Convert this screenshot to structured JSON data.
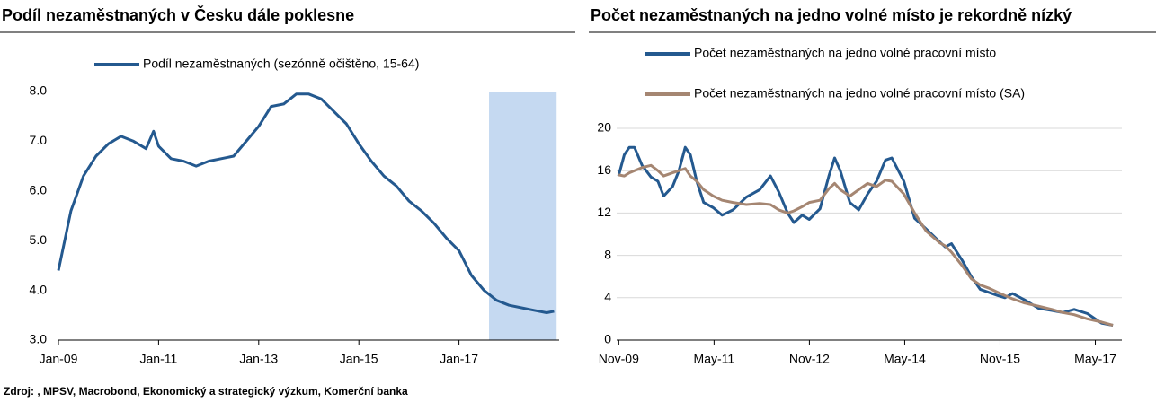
{
  "source": "Zdroj: , MPSV, Macrobond, Ekonomický a strategický výzkum, Komerční banka",
  "chart_data": [
    {
      "type": "line",
      "title": "Podíl nezaměstnaných v Česku dále poklesne",
      "x": [
        2009.0,
        2009.25,
        2009.5,
        2009.75,
        2010.0,
        2010.25,
        2010.5,
        2010.75,
        2010.9,
        2011.0,
        2011.25,
        2011.5,
        2011.75,
        2012.0,
        2012.25,
        2012.5,
        2012.75,
        2013.0,
        2013.25,
        2013.5,
        2013.75,
        2014.0,
        2014.25,
        2014.5,
        2014.75,
        2015.0,
        2015.25,
        2015.5,
        2015.75,
        2016.0,
        2016.25,
        2016.5,
        2016.75,
        2017.0,
        2017.25,
        2017.5,
        2017.75,
        2018.0,
        2018.25,
        2018.5,
        2018.75,
        2018.9
      ],
      "series": [
        {
          "name": "Podíl nezaměstnaných (sezónně očištěno, 15-64)",
          "color": "#24598f",
          "values": [
            4.4,
            5.6,
            6.3,
            6.7,
            6.95,
            7.1,
            7.0,
            6.85,
            7.2,
            6.9,
            6.65,
            6.6,
            6.5,
            6.6,
            6.65,
            6.7,
            7.0,
            7.3,
            7.7,
            7.75,
            7.95,
            7.95,
            7.85,
            7.6,
            7.35,
            6.95,
            6.6,
            6.3,
            6.1,
            5.8,
            5.6,
            5.35,
            5.05,
            4.8,
            4.3,
            4.0,
            3.8,
            3.7,
            3.65,
            3.6,
            3.55,
            3.58
          ]
        }
      ],
      "xlim": [
        2009,
        2019
      ],
      "xticks": [
        {
          "value": 2009,
          "label": "Jan-09"
        },
        {
          "value": 2011,
          "label": "Jan-11"
        },
        {
          "value": 2013,
          "label": "Jan-13"
        },
        {
          "value": 2015,
          "label": "Jan-15"
        },
        {
          "value": 2017,
          "label": "Jan-17"
        }
      ],
      "ylim": [
        3,
        8
      ],
      "yticks": [
        {
          "value": 3,
          "label": "3.0"
        },
        {
          "value": 4,
          "label": "4.0"
        },
        {
          "value": 5,
          "label": "5.0"
        },
        {
          "value": 6,
          "label": "6.0"
        },
        {
          "value": 7,
          "label": "7.0"
        },
        {
          "value": 8,
          "label": "8.0"
        }
      ],
      "grid": false,
      "legend": "top",
      "highlight": {
        "x": [
          2017.6,
          2018.95
        ],
        "color": "#c5d9f1"
      }
    },
    {
      "type": "line",
      "title": "Počet nezaměstnaných na jedno volné místo je rekordně nízký",
      "x": [
        2009.83,
        2009.92,
        2010.0,
        2010.08,
        2010.2,
        2010.34,
        2010.45,
        2010.54,
        2010.68,
        2010.78,
        2010.88,
        2010.96,
        2011.06,
        2011.17,
        2011.32,
        2011.46,
        2011.63,
        2011.84,
        2012.05,
        2012.22,
        2012.35,
        2012.49,
        2012.59,
        2012.72,
        2012.83,
        2013.0,
        2013.14,
        2013.23,
        2013.32,
        2013.47,
        2013.61,
        2013.75,
        2013.89,
        2014.03,
        2014.13,
        2014.32,
        2014.49,
        2014.67,
        2014.88,
        2014.97,
        2015.07,
        2015.24,
        2015.38,
        2015.52,
        2015.66,
        2015.8,
        2015.91,
        2016.03,
        2016.22,
        2016.44,
        2016.65,
        2016.82,
        2017.0,
        2017.21,
        2017.43,
        2017.61
      ],
      "series": [
        {
          "name": "Počet nezaměstnaných na jedno volné pracovní místo",
          "color": "#24598f",
          "values": [
            15.5,
            17.5,
            18.2,
            18.2,
            16.5,
            15.4,
            15.0,
            13.6,
            14.5,
            16.0,
            18.2,
            17.5,
            15.0,
            13.0,
            12.5,
            11.8,
            12.3,
            13.5,
            14.2,
            15.5,
            14.0,
            12.0,
            11.1,
            11.8,
            11.4,
            12.4,
            15.5,
            17.2,
            16.0,
            13.0,
            12.3,
            13.8,
            15.0,
            17.0,
            17.2,
            15.0,
            11.5,
            10.5,
            9.3,
            8.8,
            9.1,
            7.5,
            6.0,
            4.8,
            4.5,
            4.2,
            4.0,
            4.4,
            3.8,
            3.0,
            2.8,
            2.6,
            2.9,
            2.5,
            1.6,
            1.4
          ]
        },
        {
          "name": "Počet nezaměstnaných na jedno volné pracovní místo (SA)",
          "color": "#a58672",
          "values": [
            15.6,
            15.5,
            15.8,
            16,
            16.3,
            16.5,
            16,
            15.5,
            15.8,
            16.0,
            16.2,
            15.5,
            15.0,
            14.2,
            13.6,
            13.2,
            13.0,
            12.8,
            12.9,
            12.8,
            12.3,
            12.0,
            12.2,
            12.6,
            13.0,
            13.2,
            14.3,
            14.8,
            14.2,
            13.6,
            14.2,
            14.8,
            14.5,
            15.1,
            15.0,
            13.8,
            12.0,
            10.3,
            9.2,
            8.9,
            8.3,
            7.0,
            5.8,
            5.2,
            4.9,
            4.5,
            4.2,
            3.9,
            3.5,
            3.2,
            2.9,
            2.6,
            2.4,
            2.0,
            1.7,
            1.4
          ]
        }
      ],
      "xlim": [
        2009.8,
        2017.75
      ],
      "xticks": [
        {
          "value": 2009.833,
          "label": "Nov-09"
        },
        {
          "value": 2011.333,
          "label": "May-11"
        },
        {
          "value": 2012.833,
          "label": "Nov-12"
        },
        {
          "value": 2014.333,
          "label": "May-14"
        },
        {
          "value": 2015.833,
          "label": "Nov-15"
        },
        {
          "value": 2017.333,
          "label": "May-17"
        }
      ],
      "ylim": [
        0,
        20
      ],
      "yticks": [
        0,
        4,
        8,
        12,
        16,
        20
      ],
      "grid": true,
      "legend": "top-left"
    }
  ]
}
